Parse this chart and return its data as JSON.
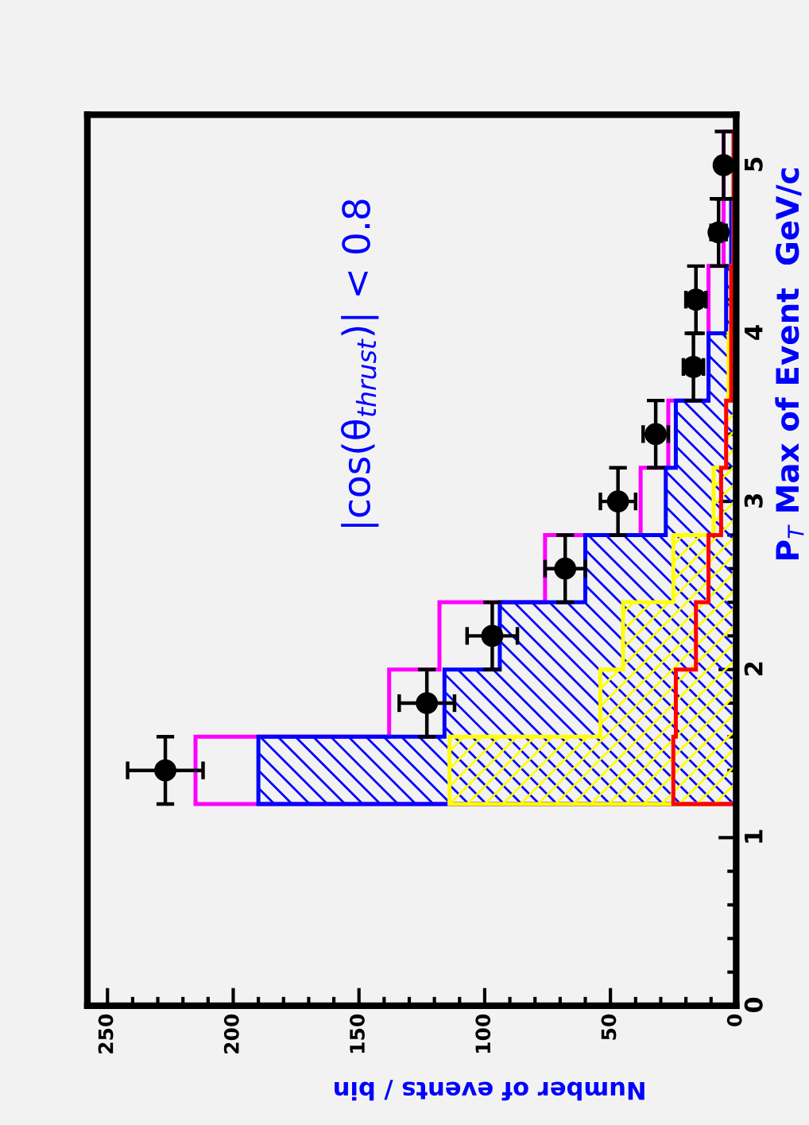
{
  "chart_data": {
    "type": "histogram",
    "orientation": "horizontal",
    "xlabel": "Number of events / bin",
    "ylabel": "P$_{T}$ Max of Event  GeV/c",
    "annotations": [
      "|cos(θ$_{thrust}$)| < 0.8"
    ],
    "bins": [
      1.2,
      1.6,
      2.0,
      2.4,
      2.8,
      3.2,
      3.6,
      4.0,
      4.4,
      4.8,
      5.2
    ],
    "series": [
      {
        "color": "#ff00ff",
        "values": [
          215,
          138,
          118,
          76,
          38,
          27,
          11,
          11,
          5,
          5
        ]
      },
      {
        "color": "#0000ff",
        "values": [
          190,
          116,
          94,
          60,
          28,
          24,
          11,
          4,
          2,
          1
        ]
      },
      {
        "color": "#ffff00",
        "values": [
          114,
          54,
          45,
          25,
          9,
          4,
          3,
          2,
          1,
          1
        ]
      },
      {
        "color": "#ff0000",
        "values": [
          25,
          24,
          16,
          11,
          6,
          4,
          2,
          2,
          1,
          1
        ]
      },
      {
        "type": "scatter",
        "color": "#000000",
        "marker": "circle",
        "x": [
          1.4,
          1.8,
          2.2,
          2.6,
          3.0,
          3.4,
          3.8,
          4.2,
          4.6,
          5.0
        ],
        "values": [
          227,
          123,
          97,
          68,
          47,
          32,
          17,
          16,
          7,
          5
        ],
        "errors": [
          15,
          11,
          10,
          8,
          7,
          5,
          4,
          4,
          3,
          2
        ],
        "xerrors": [
          0.2,
          0.2,
          0.2,
          0.2,
          0.2,
          0.2,
          0.2,
          0.2,
          0.2,
          0.2
        ]
      }
    ],
    "xlim": [
      258,
      0
    ],
    "xticks": [
      0,
      50,
      100,
      150,
      200,
      250
    ],
    "ylim": [
      0,
      5.3
    ],
    "yticks": [
      0,
      1,
      2,
      3,
      4,
      5
    ],
    "grid": false,
    "legend": false
  }
}
